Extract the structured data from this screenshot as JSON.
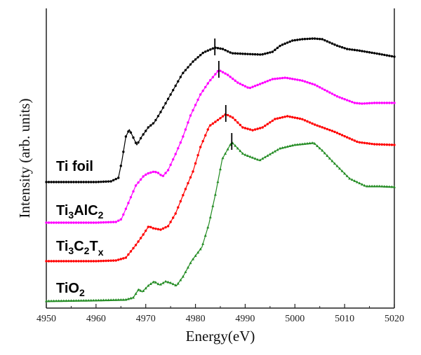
{
  "chart_data": {
    "type": "line",
    "title": "",
    "xlabel": "Energy(eV)",
    "ylabel": "Intensity (arb. units)",
    "xlim": [
      4950,
      5020
    ],
    "ylim": [
      0,
      4.3
    ],
    "xticks": [
      "4950",
      "4960",
      "4970",
      "4980",
      "4990",
      "5000",
      "5010",
      "5020"
    ],
    "xtick_values": [
      4950,
      4960,
      4970,
      4980,
      4990,
      5000,
      5010,
      5020
    ],
    "grid": false,
    "legend": "inline-left",
    "series": [
      {
        "name": "Ti foil",
        "label_main": "Ti foil",
        "label_parts": [],
        "color": "#000000",
        "marker": "circle",
        "edge_marker": 4983.9,
        "x": [
          4950,
          4960,
          4963,
          4964.5,
          4965.2,
          4966.0,
          4966.7,
          4967.4,
          4968.2,
          4969.2,
          4970.5,
          4971.7,
          4973,
          4974.6,
          4977.4,
          4979.5,
          4981.6,
          4983.9,
          4985.5,
          4987.3,
          4990,
          4993.3,
          4995.5,
          4997.1,
          4999.5,
          5001.4,
          5003.8,
          5005.5,
          5008.4,
          5010.5,
          5012.7,
          5016.9,
          5020
        ],
        "y": [
          1.8,
          1.8,
          1.81,
          1.86,
          2.1,
          2.45,
          2.55,
          2.45,
          2.33,
          2.45,
          2.58,
          2.65,
          2.8,
          3.0,
          3.35,
          3.52,
          3.65,
          3.72,
          3.7,
          3.64,
          3.63,
          3.62,
          3.66,
          3.75,
          3.82,
          3.84,
          3.85,
          3.84,
          3.75,
          3.7,
          3.68,
          3.63,
          3.59
        ]
      },
      {
        "name": "Ti3AlC2",
        "label_parts": [
          "Ti",
          "3",
          "AlC",
          "2"
        ],
        "color": "#ff00ff",
        "marker": "circle",
        "edge_marker": 4984.7,
        "x": [
          4950,
          4960,
          4964,
          4965.1,
          4966.5,
          4968,
          4969.5,
          4970.3,
          4971.7,
          4972.5,
          4973.4,
          4974.5,
          4976,
          4977.4,
          4979,
          4981,
          4982.7,
          4984.7,
          4986.5,
          4988.5,
          4990.8,
          4993,
          4995.5,
          4998.1,
          5001.4,
          5004,
          5008.6,
          5012,
          5013.4,
          5016,
          5020
        ],
        "y": [
          1.22,
          1.22,
          1.23,
          1.27,
          1.5,
          1.75,
          1.88,
          1.92,
          1.95,
          1.93,
          1.88,
          1.97,
          2.2,
          2.43,
          2.75,
          3.05,
          3.23,
          3.4,
          3.33,
          3.22,
          3.14,
          3.2,
          3.27,
          3.29,
          3.25,
          3.19,
          3.02,
          2.93,
          2.92,
          2.93,
          2.93
        ]
      },
      {
        "name": "Ti3C2Tx",
        "label_parts": [
          "Ti",
          "3",
          "C",
          "2",
          "T",
          "x"
        ],
        "color": "#ff0000",
        "marker": "circle",
        "edge_marker": 4986.1,
        "x": [
          4950,
          4960,
          4964,
          4966,
          4968,
          4969.5,
          4970.6,
          4971.5,
          4973,
          4974.5,
          4976,
          4978,
          4979.5,
          4981,
          4982.8,
          4984.2,
          4986.1,
          4987.5,
          4989.5,
          4991.5,
          4993.5,
          4996,
          4998.5,
          5001.4,
          5004,
          5007.9,
          5012.7,
          5016,
          5020
        ],
        "y": [
          0.67,
          0.67,
          0.68,
          0.72,
          0.9,
          1.05,
          1.17,
          1.14,
          1.12,
          1.17,
          1.35,
          1.7,
          1.95,
          2.3,
          2.6,
          2.67,
          2.77,
          2.72,
          2.58,
          2.54,
          2.58,
          2.7,
          2.74,
          2.7,
          2.62,
          2.52,
          2.37,
          2.34,
          2.33
        ]
      },
      {
        "name": "TiO2",
        "label_parts": [
          "TiO",
          "2"
        ],
        "color": "#228b22",
        "marker": "triangle",
        "edge_marker": 4987.3,
        "x": [
          4950,
          4960,
          4966,
          4967.5,
          4968.6,
          4969.3,
          4970.5,
          4971.7,
          4972.8,
          4974,
          4975,
          4976.2,
          4977.5,
          4979.2,
          4981.3,
          4982.7,
          4984,
          4985.4,
          4987.3,
          4989.6,
          4992.9,
          4995.3,
          4997,
          4999.9,
          5003.8,
          5005.5,
          5007.5,
          5011,
          5014.3,
          5017,
          5020
        ],
        "y": [
          0.1,
          0.11,
          0.12,
          0.15,
          0.27,
          0.23,
          0.32,
          0.38,
          0.33,
          0.38,
          0.36,
          0.32,
          0.45,
          0.67,
          0.87,
          1.2,
          1.62,
          2.13,
          2.37,
          2.2,
          2.11,
          2.21,
          2.28,
          2.33,
          2.36,
          2.25,
          2.1,
          1.85,
          1.74,
          1.74,
          1.73
        ]
      }
    ]
  }
}
